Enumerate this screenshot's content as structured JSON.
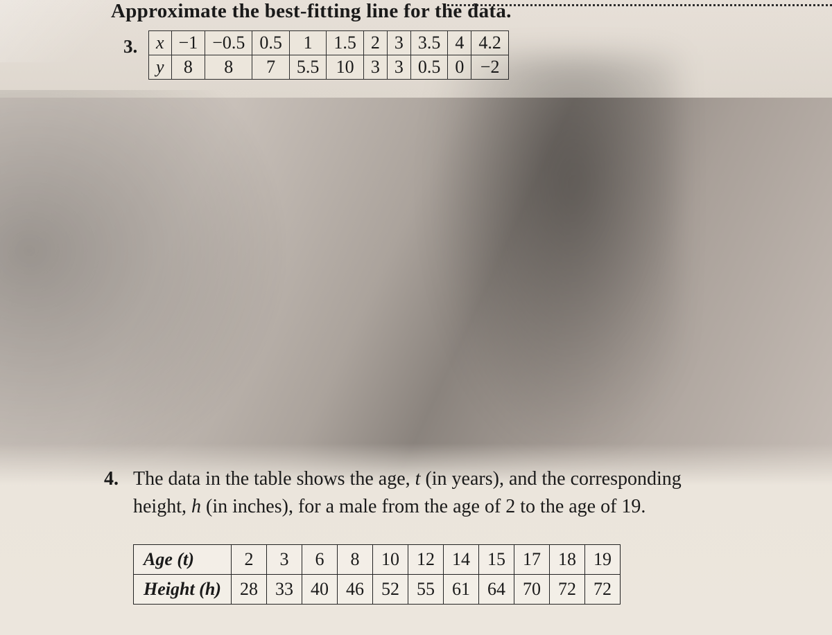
{
  "section_title": "Approximate the best-fitting line for the data.",
  "problem3": {
    "number": "3.",
    "row_labels": [
      "x",
      "y"
    ],
    "columns": [
      {
        "x": "−1",
        "y": "8"
      },
      {
        "x": "−0.5",
        "y": "8"
      },
      {
        "x": "0.5",
        "y": "7"
      },
      {
        "x": "1",
        "y": "5.5"
      },
      {
        "x": "1.5",
        "y": "10"
      },
      {
        "x": "2",
        "y": "3"
      },
      {
        "x": "3",
        "y": "3"
      },
      {
        "x": "3.5",
        "y": "0.5"
      },
      {
        "x": "4",
        "y": "0"
      },
      {
        "x": "4.2",
        "y": "−2"
      }
    ],
    "cell_bg": "#e9e2d8",
    "border_color": "#2d2d2d",
    "font_size_pt": 20
  },
  "problem4": {
    "number": "4.",
    "text_line1": "The data in the table shows the age, ",
    "var_t": "t",
    "text_line1b": " (in years), and the corresponding",
    "text_line2a": "height, ",
    "var_h": "h",
    "text_line2b": " (in inches), for a male from the age of 2 to the age of 19.",
    "row_labels": {
      "age": "Age (t)",
      "height": "Height (h)"
    },
    "columns": [
      {
        "t": "2",
        "h": "28"
      },
      {
        "t": "3",
        "h": "33"
      },
      {
        "t": "6",
        "h": "40"
      },
      {
        "t": "8",
        "h": "46"
      },
      {
        "t": "10",
        "h": "52"
      },
      {
        "t": "12",
        "h": "55"
      },
      {
        "t": "14",
        "h": "61"
      },
      {
        "t": "15",
        "h": "64"
      },
      {
        "t": "17",
        "h": "70"
      },
      {
        "t": "18",
        "h": "72"
      },
      {
        "t": "19",
        "h": "72"
      }
    ],
    "cell_bg": "#f1ece3",
    "border_color": "#222222",
    "font_size_pt": 20
  },
  "colors": {
    "paper_light": "#ece6dd",
    "paper_shadow": "#8a837d",
    "text": "#1a1a1a"
  }
}
